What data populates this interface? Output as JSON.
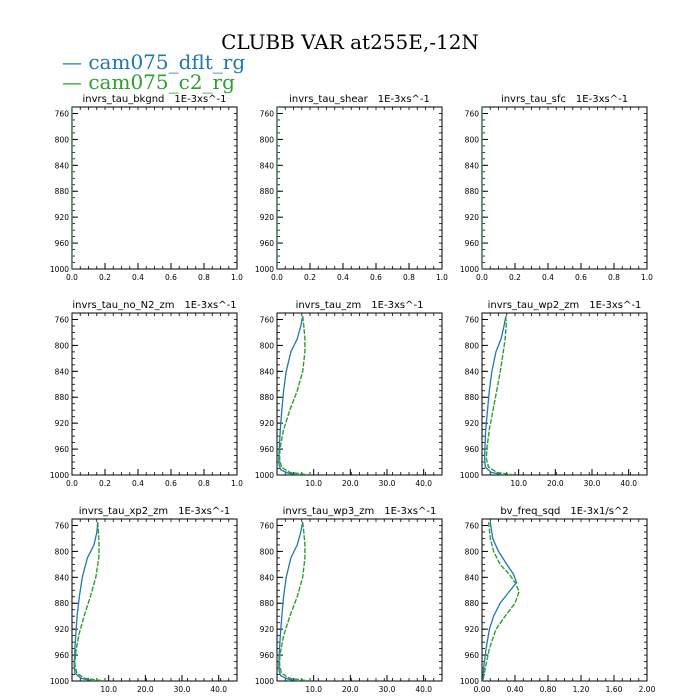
{
  "title": "CLUBB VAR at255E,-12N",
  "legend": [
    {
      "label": "cam075_dflt_rg",
      "color": "#1f77b4"
    },
    {
      "label": "cam075_c2_rg",
      "color": "#2ca02c"
    }
  ],
  "chart_data": [
    {
      "type": "line",
      "title": "invrs_tau_bkgnd",
      "units": "1E-3xs^-1",
      "xlim": [
        0,
        1
      ],
      "xticks": [
        "0.0",
        "0.2",
        "0.4",
        "0.6",
        "0.8",
        "1.0"
      ],
      "ylim": [
        750,
        1000
      ],
      "yticks": [
        "760",
        "800",
        "840",
        "880",
        "920",
        "960",
        "1000"
      ],
      "y_inverted": true,
      "series": [
        {
          "name": "cam075_dflt_rg",
          "x": [
            0,
            0
          ],
          "y": [
            750,
            1000
          ]
        },
        {
          "name": "cam075_c2_rg",
          "x": [
            0,
            0
          ],
          "y": [
            750,
            1000
          ]
        }
      ]
    },
    {
      "type": "line",
      "title": "invrs_tau_shear",
      "units": "1E-3xs^-1",
      "xlim": [
        0,
        1
      ],
      "xticks": [
        "0.0",
        "0.2",
        "0.4",
        "0.6",
        "0.8",
        "1.0"
      ],
      "ylim": [
        750,
        1000
      ],
      "yticks": [
        "760",
        "800",
        "840",
        "880",
        "920",
        "960",
        "1000"
      ],
      "y_inverted": true,
      "series": [
        {
          "name": "cam075_dflt_rg",
          "x": [
            0,
            0
          ],
          "y": [
            750,
            1000
          ]
        },
        {
          "name": "cam075_c2_rg",
          "x": [
            0,
            0
          ],
          "y": [
            750,
            1000
          ]
        }
      ]
    },
    {
      "type": "line",
      "title": "invrs_tau_sfc",
      "units": "1E-3xs^-1",
      "xlim": [
        0,
        1
      ],
      "xticks": [
        "0.0",
        "0.2",
        "0.4",
        "0.6",
        "0.8",
        "1.0"
      ],
      "ylim": [
        750,
        1000
      ],
      "yticks": [
        "760",
        "800",
        "840",
        "880",
        "920",
        "960",
        "1000"
      ],
      "y_inverted": true,
      "series": [
        {
          "name": "cam075_dflt_rg",
          "x": [
            0,
            0
          ],
          "y": [
            750,
            1000
          ]
        },
        {
          "name": "cam075_c2_rg",
          "x": [
            0,
            0
          ],
          "y": [
            750,
            1000
          ]
        }
      ]
    },
    {
      "type": "line",
      "title": "invrs_tau_no_N2_zm",
      "units": "1E-3xs^-1",
      "xlim": [
        0,
        1
      ],
      "xticks": [
        "0.0",
        "0.2",
        "0.4",
        "0.6",
        "0.8",
        "1.0"
      ],
      "ylim": [
        750,
        1000
      ],
      "yticks": [
        "760",
        "800",
        "840",
        "880",
        "920",
        "960",
        "1000"
      ],
      "y_inverted": true,
      "series": []
    },
    {
      "type": "line",
      "title": "invrs_tau_zm",
      "units": "1E-3xs^-1",
      "xlim": [
        0,
        45
      ],
      "xticks": [
        "10.0",
        "20.0",
        "30.0",
        "40.0"
      ],
      "ylim": [
        750,
        1000
      ],
      "yticks": [
        "760",
        "800",
        "840",
        "880",
        "920",
        "960",
        "1000"
      ],
      "y_inverted": true,
      "series": [
        {
          "name": "cam075_dflt_rg",
          "x": [
            7.0,
            6.5,
            5.5,
            3.8,
            2.5,
            1.8,
            1.3,
            0.9,
            0.6,
            0.5,
            0.6,
            1.0,
            3.0,
            6.0
          ],
          "y": [
            755,
            770,
            790,
            810,
            840,
            870,
            900,
            930,
            960,
            975,
            985,
            992,
            997,
            1000
          ]
        },
        {
          "name": "cam075_c2_rg",
          "x": [
            7.0,
            7.3,
            7.6,
            7.6,
            7.0,
            5.5,
            3.5,
            1.8,
            0.8,
            0.7,
            1.2,
            3.5,
            9.0
          ],
          "y": [
            755,
            770,
            790,
            810,
            840,
            870,
            900,
            930,
            960,
            975,
            988,
            996,
            1000
          ]
        }
      ]
    },
    {
      "type": "line",
      "title": "invrs_tau_wp2_zm",
      "units": "1E-3xs^-1",
      "xlim": [
        0,
        45
      ],
      "xticks": [
        "10.0",
        "20.0",
        "30.0",
        "40.0"
      ],
      "ylim": [
        750,
        1000
      ],
      "yticks": [
        "760",
        "800",
        "840",
        "880",
        "920",
        "960",
        "1000"
      ],
      "y_inverted": true,
      "series": [
        {
          "name": "cam075_dflt_rg",
          "x": [
            6.5,
            6.0,
            5.2,
            3.8,
            2.7,
            2.0,
            1.5,
            1.0,
            0.8,
            0.7,
            0.9,
            2.5,
            6.0
          ],
          "y": [
            755,
            770,
            790,
            810,
            840,
            870,
            900,
            930,
            960,
            975,
            988,
            996,
            1000
          ]
        },
        {
          "name": "cam075_c2_rg",
          "x": [
            6.5,
            6.6,
            6.3,
            5.8,
            5.0,
            4.0,
            3.0,
            2.0,
            1.3,
            1.2,
            1.8,
            4.0,
            9.0
          ],
          "y": [
            755,
            770,
            790,
            810,
            840,
            870,
            900,
            930,
            960,
            975,
            988,
            996,
            1000
          ]
        }
      ]
    },
    {
      "type": "line",
      "title": "invrs_tau_xp2_zm",
      "units": "1E-3xs^-1",
      "xlim": [
        0,
        45
      ],
      "xticks": [
        "10.0",
        "20.0",
        "30.0",
        "40.0"
      ],
      "ylim": [
        750,
        1000
      ],
      "yticks": [
        "760",
        "800",
        "840",
        "880",
        "920",
        "960",
        "1000"
      ],
      "y_inverted": true,
      "series": [
        {
          "name": "cam075_dflt_rg",
          "x": [
            7.0,
            6.8,
            6.0,
            4.2,
            2.8,
            2.0,
            1.4,
            1.0,
            0.7,
            0.6,
            0.8,
            2.5,
            6.0
          ],
          "y": [
            755,
            770,
            790,
            810,
            840,
            870,
            900,
            930,
            960,
            975,
            988,
            996,
            1000
          ]
        },
        {
          "name": "cam075_c2_rg",
          "x": [
            7.0,
            7.2,
            7.4,
            7.3,
            6.5,
            5.0,
            3.3,
            1.8,
            0.9,
            0.8,
            1.3,
            3.5,
            9.0
          ],
          "y": [
            755,
            770,
            790,
            810,
            840,
            870,
            900,
            930,
            960,
            975,
            988,
            996,
            1000
          ]
        }
      ]
    },
    {
      "type": "line",
      "title": "invrs_tau_wp3_zm",
      "units": "1E-3xs^-1",
      "xlim": [
        0,
        45
      ],
      "xticks": [
        "10.0",
        "20.0",
        "30.0",
        "40.0"
      ],
      "ylim": [
        750,
        1000
      ],
      "yticks": [
        "760",
        "800",
        "840",
        "880",
        "920",
        "960",
        "1000"
      ],
      "y_inverted": true,
      "series": [
        {
          "name": "cam075_dflt_rg",
          "x": [
            7.0,
            6.5,
            5.5,
            3.8,
            2.5,
            1.8,
            1.3,
            0.9,
            0.6,
            0.5,
            0.6,
            1.0,
            3.0,
            6.0
          ],
          "y": [
            755,
            770,
            790,
            810,
            840,
            870,
            900,
            930,
            960,
            975,
            985,
            992,
            997,
            1000
          ]
        },
        {
          "name": "cam075_c2_rg",
          "x": [
            7.0,
            7.3,
            7.6,
            7.6,
            7.0,
            5.5,
            3.5,
            1.8,
            0.8,
            0.7,
            1.2,
            3.5,
            9.0
          ],
          "y": [
            755,
            770,
            790,
            810,
            840,
            870,
            900,
            930,
            960,
            975,
            988,
            996,
            1000
          ]
        }
      ]
    },
    {
      "type": "line",
      "title": "bv_freq_sqd",
      "units": "1E-3x1/s^2",
      "xlim": [
        0,
        2
      ],
      "xticks": [
        "0.00",
        "0.40",
        "0.80",
        "1.20",
        "1.60",
        "2.00"
      ],
      "ylim": [
        750,
        1000
      ],
      "yticks": [
        "760",
        "800",
        "840",
        "880",
        "920",
        "960",
        "1000"
      ],
      "y_inverted": true,
      "series": [
        {
          "name": "cam075_dflt_rg",
          "x": [
            0.1,
            0.13,
            0.2,
            0.3,
            0.38,
            0.42,
            0.33,
            0.22,
            0.14,
            0.09,
            0.05,
            0.02,
            0.01
          ],
          "y": [
            755,
            780,
            800,
            820,
            835,
            848,
            862,
            880,
            900,
            920,
            950,
            980,
            1000
          ]
        },
        {
          "name": "cam075_c2_rg",
          "x": [
            0.08,
            0.1,
            0.14,
            0.22,
            0.33,
            0.4,
            0.45,
            0.4,
            0.28,
            0.17,
            0.09,
            0.04,
            0.01
          ],
          "y": [
            755,
            780,
            800,
            820,
            835,
            848,
            862,
            880,
            900,
            920,
            950,
            980,
            1000
          ]
        }
      ]
    }
  ]
}
